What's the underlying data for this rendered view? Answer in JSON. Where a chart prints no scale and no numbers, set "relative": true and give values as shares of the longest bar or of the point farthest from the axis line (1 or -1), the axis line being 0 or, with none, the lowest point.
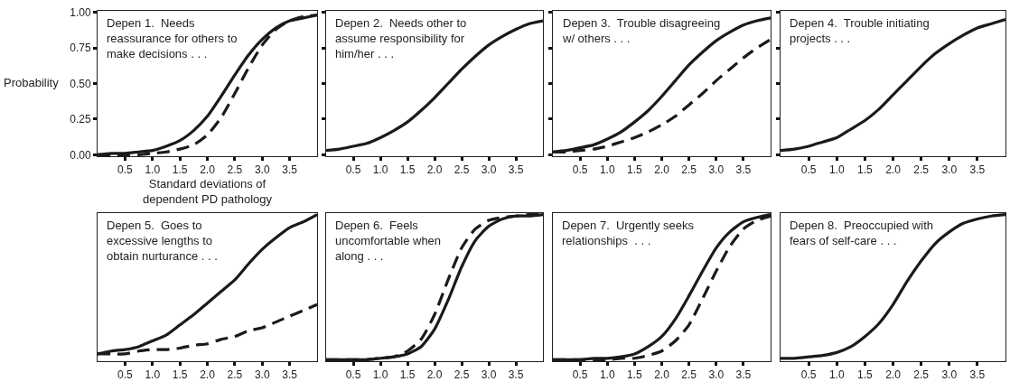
{
  "chart_data": [
    {
      "type": "line",
      "title": "Depen 1.  Needs\nreassurance for others to\nmake decisions . . .",
      "xlabel": "Standard deviations of\ndependent PD pathology",
      "ylabel": "Probability",
      "x": [
        0,
        0.25,
        0.5,
        0.75,
        1,
        1.25,
        1.5,
        1.75,
        2,
        2.25,
        2.5,
        2.75,
        3,
        3.25,
        3.5,
        3.75,
        4
      ],
      "xlim": [
        0,
        4
      ],
      "xticks": [
        {
          "value": 0.5,
          "label": "0.5"
        },
        {
          "value": 1,
          "label": "1.0"
        },
        {
          "value": 1.5,
          "label": "1.5"
        },
        {
          "value": 2,
          "label": "2.0"
        },
        {
          "value": 2.5,
          "label": "2.5"
        },
        {
          "value": 3,
          "label": "3.0"
        },
        {
          "value": 3.5,
          "label": "3.5"
        }
      ],
      "ylim": [
        -0.01,
        1.01
      ],
      "yticks": [
        {
          "value": 0,
          "label": "0.00"
        },
        {
          "value": 0.25,
          "label": "0.25"
        },
        {
          "value": 0.5,
          "label": "0.50"
        },
        {
          "value": 0.75,
          "label": "0.75"
        },
        {
          "value": 1,
          "label": "1.00"
        }
      ],
      "series": [
        {
          "color": "#1a1a1a",
          "line_style": "solid",
          "values": [
            0.0,
            0.01,
            0.01,
            0.02,
            0.03,
            0.06,
            0.1,
            0.17,
            0.27,
            0.41,
            0.56,
            0.7,
            0.81,
            0.89,
            0.94,
            0.96,
            0.98
          ]
        },
        {
          "color": "#1a1a1a",
          "line_style": "dashed",
          "values": [
            0.0,
            0.0,
            0.0,
            0.0,
            0.01,
            0.02,
            0.04,
            0.07,
            0.14,
            0.26,
            0.43,
            0.61,
            0.77,
            0.88,
            0.94,
            0.97,
            0.98
          ]
        }
      ]
    },
    {
      "type": "line",
      "title": "Depen 2.  Needs other to\nassume responsibility for\nhim/her . . .",
      "x": [
        0,
        0.25,
        0.5,
        0.75,
        1,
        1.25,
        1.5,
        1.75,
        2,
        2.25,
        2.5,
        2.75,
        3,
        3.25,
        3.5,
        3.75,
        4
      ],
      "xlim": [
        0,
        4
      ],
      "xticks": [
        {
          "value": 0.5,
          "label": "0.5"
        },
        {
          "value": 1,
          "label": "1.0"
        },
        {
          "value": 1.5,
          "label": "1.5"
        },
        {
          "value": 2,
          "label": "2.0"
        },
        {
          "value": 2.5,
          "label": "2.5"
        },
        {
          "value": 3,
          "label": "3.0"
        },
        {
          "value": 3.5,
          "label": "3.5"
        }
      ],
      "ylim": [
        -0.01,
        1.01
      ],
      "yticks": [
        0,
        0.25,
        0.5,
        0.75,
        1
      ],
      "tick_labels": "x",
      "series": [
        {
          "color": "#1a1a1a",
          "line_style": "solid",
          "values": [
            0.03,
            0.04,
            0.06,
            0.08,
            0.12,
            0.17,
            0.23,
            0.31,
            0.4,
            0.5,
            0.6,
            0.69,
            0.77,
            0.83,
            0.88,
            0.92,
            0.94
          ]
        }
      ]
    },
    {
      "type": "line",
      "title": "Depen 3.  Trouble disagreeing\nw/ others . . .",
      "x": [
        0,
        0.25,
        0.5,
        0.75,
        1,
        1.25,
        1.5,
        1.75,
        2,
        2.25,
        2.5,
        2.75,
        3,
        3.25,
        3.5,
        3.75,
        4
      ],
      "xlim": [
        0,
        4
      ],
      "xticks": [
        {
          "value": 0.5,
          "label": "0.5"
        },
        {
          "value": 1,
          "label": "1.0"
        },
        {
          "value": 1.5,
          "label": "1.5"
        },
        {
          "value": 2,
          "label": "2.0"
        },
        {
          "value": 2.5,
          "label": "2.5"
        },
        {
          "value": 3,
          "label": "3.0"
        },
        {
          "value": 3.5,
          "label": "3.5"
        }
      ],
      "ylim": [
        -0.01,
        1.01
      ],
      "yticks": [
        0,
        0.25,
        0.5,
        0.75,
        1
      ],
      "tick_labels": "x",
      "series": [
        {
          "color": "#1a1a1a",
          "line_style": "solid",
          "values": [
            0.02,
            0.03,
            0.05,
            0.07,
            0.11,
            0.16,
            0.23,
            0.31,
            0.41,
            0.52,
            0.63,
            0.72,
            0.8,
            0.86,
            0.91,
            0.94,
            0.96
          ]
        },
        {
          "color": "#1a1a1a",
          "line_style": "dashed",
          "values": [
            0.02,
            0.02,
            0.03,
            0.04,
            0.06,
            0.09,
            0.12,
            0.16,
            0.21,
            0.27,
            0.35,
            0.43,
            0.52,
            0.6,
            0.68,
            0.75,
            0.81
          ]
        }
      ]
    },
    {
      "type": "line",
      "title": "Depen 4.  Trouble initiating\nprojects . . .",
      "x": [
        0,
        0.25,
        0.5,
        0.75,
        1,
        1.25,
        1.5,
        1.75,
        2,
        2.25,
        2.5,
        2.75,
        3,
        3.25,
        3.5,
        3.75,
        4
      ],
      "xlim": [
        0,
        4
      ],
      "xticks": [
        {
          "value": 0.5,
          "label": "0.5"
        },
        {
          "value": 1,
          "label": "1.0"
        },
        {
          "value": 1.5,
          "label": "1.5"
        },
        {
          "value": 2,
          "label": "2.0"
        },
        {
          "value": 2.5,
          "label": "2.5"
        },
        {
          "value": 3,
          "label": "3.0"
        },
        {
          "value": 3.5,
          "label": "3.5"
        }
      ],
      "ylim": [
        -0.01,
        1.01
      ],
      "yticks": [
        0,
        0.25,
        0.5,
        0.75,
        1
      ],
      "tick_labels": "x",
      "series": [
        {
          "color": "#1a1a1a",
          "line_style": "solid",
          "values": [
            0.03,
            0.04,
            0.06,
            0.09,
            0.12,
            0.18,
            0.24,
            0.32,
            0.42,
            0.52,
            0.62,
            0.71,
            0.78,
            0.84,
            0.89,
            0.92,
            0.95
          ]
        }
      ]
    },
    {
      "type": "line",
      "title": "Depen 5.  Goes to\nexcessive lengths to\nobtain nurturance . . .",
      "x": [
        0,
        0.25,
        0.5,
        0.75,
        1,
        1.25,
        1.5,
        1.75,
        2,
        2.25,
        2.5,
        2.75,
        3,
        3.25,
        3.5,
        3.75,
        4
      ],
      "xlim": [
        0,
        4
      ],
      "xticks": [
        {
          "value": 0.5,
          "label": "0.5"
        },
        {
          "value": 1,
          "label": "1.0"
        },
        {
          "value": 1.5,
          "label": "1.5"
        },
        {
          "value": 2,
          "label": "2.0"
        },
        {
          "value": 2.5,
          "label": "2.5"
        },
        {
          "value": 3,
          "label": "3.0"
        },
        {
          "value": 3.5,
          "label": "3.5"
        }
      ],
      "relative": true,
      "tick_labels": "x",
      "series": [
        {
          "color": "#1a1a1a",
          "line_style": "solid",
          "values": [
            0.04,
            0.06,
            0.07,
            0.09,
            0.13,
            0.17,
            0.24,
            0.31,
            0.39,
            0.47,
            0.55,
            0.66,
            0.76,
            0.84,
            0.91,
            0.95,
            1.0
          ]
        },
        {
          "color": "#1a1a1a",
          "line_style": "dashed",
          "values": [
            0.04,
            0.04,
            0.04,
            0.06,
            0.07,
            0.07,
            0.08,
            0.1,
            0.11,
            0.14,
            0.16,
            0.2,
            0.22,
            0.26,
            0.3,
            0.34,
            0.38
          ]
        }
      ]
    },
    {
      "type": "line",
      "title": "Depen 6.  Feels\nuncomfortable when\nalong . . .",
      "x": [
        0,
        0.25,
        0.5,
        0.75,
        1,
        1.25,
        1.5,
        1.75,
        2,
        2.25,
        2.5,
        2.75,
        3,
        3.25,
        3.5,
        3.75,
        4
      ],
      "xlim": [
        0,
        4
      ],
      "xticks": [
        {
          "value": 0.5,
          "label": "0.5"
        },
        {
          "value": 1,
          "label": "1.0"
        },
        {
          "value": 1.5,
          "label": "1.5"
        },
        {
          "value": 2,
          "label": "2.0"
        },
        {
          "value": 2.5,
          "label": "2.5"
        },
        {
          "value": 3,
          "label": "3.0"
        },
        {
          "value": 3.5,
          "label": "3.5"
        }
      ],
      "relative": true,
      "tick_labels": "x",
      "series": [
        {
          "color": "#1a1a1a",
          "line_style": "solid",
          "values": [
            0.0,
            0.0,
            0.0,
            0.0,
            0.01,
            0.02,
            0.04,
            0.09,
            0.21,
            0.41,
            0.64,
            0.82,
            0.92,
            0.97,
            0.99,
            0.99,
            1.0
          ]
        },
        {
          "color": "#1a1a1a",
          "line_style": "dashed",
          "values": [
            0.0,
            0.0,
            0.0,
            0.0,
            0.01,
            0.02,
            0.06,
            0.14,
            0.31,
            0.55,
            0.77,
            0.9,
            0.96,
            0.98,
            0.99,
            1.0,
            1.0
          ]
        }
      ]
    },
    {
      "type": "line",
      "title": "Depen 7.  Urgently seeks\nrelationships  . . .",
      "x": [
        0,
        0.25,
        0.5,
        0.75,
        1,
        1.25,
        1.5,
        1.75,
        2,
        2.25,
        2.5,
        2.75,
        3,
        3.25,
        3.5,
        3.75,
        4
      ],
      "xlim": [
        0,
        4
      ],
      "xticks": [
        {
          "value": 0.5,
          "label": "0.5"
        },
        {
          "value": 1,
          "label": "1.0"
        },
        {
          "value": 1.5,
          "label": "1.5"
        },
        {
          "value": 2,
          "label": "2.0"
        },
        {
          "value": 2.5,
          "label": "2.5"
        },
        {
          "value": 3,
          "label": "3.0"
        },
        {
          "value": 3.5,
          "label": "3.5"
        }
      ],
      "relative": true,
      "tick_labels": "x",
      "series": [
        {
          "color": "#1a1a1a",
          "line_style": "solid",
          "values": [
            0.0,
            0.0,
            0.0,
            0.01,
            0.01,
            0.02,
            0.04,
            0.09,
            0.16,
            0.28,
            0.44,
            0.61,
            0.77,
            0.88,
            0.95,
            0.98,
            1.0
          ]
        },
        {
          "color": "#1a1a1a",
          "line_style": "dashed",
          "values": [
            0.0,
            0.0,
            0.0,
            0.0,
            0.0,
            0.01,
            0.01,
            0.03,
            0.06,
            0.13,
            0.24,
            0.42,
            0.61,
            0.78,
            0.9,
            0.96,
            0.99
          ]
        }
      ]
    },
    {
      "type": "line",
      "title": "Depen 8.  Preoccupied with\nfears of self-care . . .",
      "x": [
        0,
        0.25,
        0.5,
        0.75,
        1,
        1.25,
        1.5,
        1.75,
        2,
        2.25,
        2.5,
        2.75,
        3,
        3.25,
        3.5,
        3.75,
        4
      ],
      "xlim": [
        0,
        4
      ],
      "xticks": [
        {
          "value": 0.5,
          "label": "0.5"
        },
        {
          "value": 1,
          "label": "1.0"
        },
        {
          "value": 1.5,
          "label": "1.5"
        },
        {
          "value": 2,
          "label": "2.0"
        },
        {
          "value": 2.5,
          "label": "2.5"
        },
        {
          "value": 3,
          "label": "3.0"
        },
        {
          "value": 3.5,
          "label": "3.5"
        }
      ],
      "relative": true,
      "tick_labels": "x",
      "series": [
        {
          "color": "#1a1a1a",
          "line_style": "solid",
          "values": [
            0.01,
            0.01,
            0.02,
            0.03,
            0.05,
            0.09,
            0.16,
            0.25,
            0.38,
            0.54,
            0.68,
            0.8,
            0.88,
            0.94,
            0.97,
            0.99,
            1.0
          ]
        }
      ]
    }
  ]
}
